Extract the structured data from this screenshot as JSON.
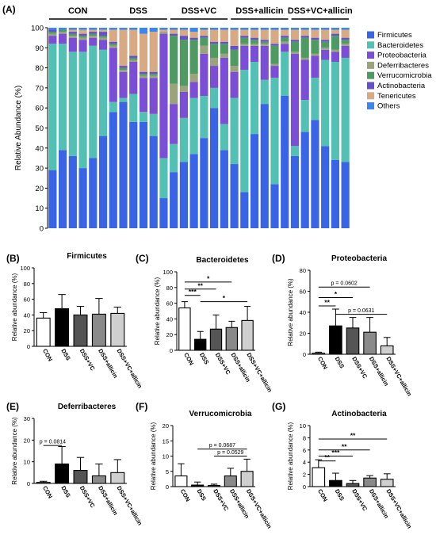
{
  "figure": {
    "panel_labels": [
      "(A)",
      "(B)",
      "(C)",
      "(D)",
      "(E)",
      "(F)",
      "(G)"
    ]
  },
  "colors": {
    "Firmicutes": "#3a64e6",
    "Bacteroidetes": "#52c1b3",
    "Proteobacteria": "#7a4fd6",
    "Deferribacteres": "#9aa37a",
    "Verrucomicrobia": "#4f9a63",
    "Actinobacteria": "#6650c9",
    "Tenericutes": "#d8aa83",
    "Others": "#3b86f0",
    "bar_fills": [
      "#ffffff",
      "#000000",
      "#555555",
      "#8a8a8a",
      "#cfcfcf"
    ]
  },
  "chart_data": [
    {
      "panel": "(A)",
      "type": "bar",
      "stacked": true,
      "ylabel": "Relative Abundance (%)",
      "ylim": [
        0,
        100
      ],
      "yticks": [
        0,
        10,
        20,
        30,
        40,
        50,
        60,
        70,
        80,
        90,
        100
      ],
      "groups": [
        "CON",
        "DSS",
        "DSS+VC",
        "DSS+allicin",
        "DSS+VC+allicin"
      ],
      "samples_per_group": 6,
      "legend": [
        "Firmicutes",
        "Bacteroidetes",
        "Proteobacteria",
        "Deferribacteres",
        "Verrucomicrobia",
        "Actinobacteria",
        "Tenericutes",
        "Others"
      ],
      "legend_position": "right",
      "series": [
        {
          "name": "Firmicutes",
          "values": [
            29,
            39,
            36,
            30,
            35,
            46,
            58,
            63,
            53,
            53,
            46,
            15,
            28,
            33,
            37,
            45,
            60,
            39,
            32,
            18,
            47,
            62,
            22,
            66,
            36,
            48,
            54,
            41,
            34,
            33
          ]
        },
        {
          "name": "Bacteroidetes",
          "values": [
            63,
            53,
            52,
            58,
            56,
            43,
            5,
            2,
            14,
            5,
            11,
            20,
            14,
            22,
            28,
            21,
            10,
            13,
            33,
            61,
            36,
            12,
            53,
            22,
            5,
            16,
            21,
            43,
            49,
            52
          ]
        },
        {
          "name": "Proteobacteria",
          "values": [
            4,
            5,
            7,
            6,
            4,
            5,
            27,
            13,
            16,
            17,
            18,
            62,
            20,
            13,
            8,
            21,
            11,
            33,
            13,
            12,
            8,
            17,
            6,
            4,
            46,
            20,
            11,
            5,
            5,
            6
          ]
        },
        {
          "name": "Deferribacteres",
          "values": [
            1,
            1,
            1,
            1,
            1,
            1,
            1,
            1,
            1,
            1,
            1,
            1,
            10,
            3,
            4,
            4,
            4,
            2,
            3,
            1,
            1,
            1,
            1,
            1,
            1,
            1,
            1,
            1,
            1,
            1
          ]
        },
        {
          "name": "Verrucomicrobia",
          "values": [
            1,
            1,
            1,
            1,
            1,
            1,
            1,
            1,
            1,
            1,
            1,
            0,
            24,
            23,
            17,
            4,
            7,
            5,
            8,
            3,
            2,
            1,
            9,
            2,
            5,
            10,
            7,
            3,
            7,
            2
          ]
        },
        {
          "name": "Actinobacteria",
          "values": [
            1,
            0,
            1,
            1,
            1,
            2,
            1,
            1,
            1,
            1,
            1,
            0,
            1,
            2,
            1,
            1,
            1,
            1,
            2,
            1,
            1,
            1,
            1,
            1,
            1,
            1,
            1,
            1,
            1,
            1
          ]
        },
        {
          "name": "Tenericutes",
          "values": [
            0,
            0,
            1,
            2,
            1,
            1,
            6,
            18,
            13,
            19,
            20,
            1,
            2,
            3,
            3,
            3,
            6,
            6,
            8,
            3,
            4,
            5,
            7,
            3,
            5,
            3,
            4,
            5,
            2,
            4
          ]
        },
        {
          "name": "Others",
          "values": [
            1,
            1,
            1,
            1,
            1,
            1,
            1,
            1,
            1,
            3,
            2,
            1,
            1,
            1,
            2,
            1,
            1,
            1,
            1,
            1,
            1,
            1,
            1,
            1,
            1,
            1,
            1,
            1,
            1,
            1
          ]
        }
      ]
    },
    {
      "panel": "(B)",
      "type": "bar",
      "title": "Firmicutes",
      "ylabel": "Relative abundance (%)",
      "categories": [
        "CON",
        "DSS",
        "DSS+VC",
        "DSS+allicin",
        "DSS+VC+allicin"
      ],
      "values": [
        36,
        48,
        40,
        41,
        42
      ],
      "errors": [
        7,
        18,
        11,
        20,
        8
      ],
      "ylim": [
        0,
        100
      ],
      "yticks": [
        0,
        20,
        40,
        60,
        80,
        100
      ],
      "annotations": []
    },
    {
      "panel": "(C)",
      "type": "bar",
      "title": "Bacteroidetes",
      "ylabel": "Relative abundance (%)",
      "categories": [
        "CON",
        "DSS",
        "DSS+VC",
        "DSS+allicin",
        "DSS+VC+allicin"
      ],
      "values": [
        54,
        14,
        27,
        29,
        38
      ],
      "errors": [
        8,
        10,
        18,
        8,
        18
      ],
      "ylim": [
        0,
        100
      ],
      "yticks": [
        0,
        20,
        40,
        60,
        80,
        100
      ],
      "annotations": [
        {
          "from": 0,
          "to": 3,
          "y": 87,
          "label": "*"
        },
        {
          "from": 0,
          "to": 2,
          "y": 78,
          "label": "**"
        },
        {
          "from": 0,
          "to": 1,
          "y": 70,
          "label": "***"
        },
        {
          "from": 1,
          "to": 4,
          "y": 62,
          "label": "*"
        }
      ]
    },
    {
      "panel": "(D)",
      "type": "bar",
      "title": "Proteobacteria",
      "ylabel": "Relative abundance (%)",
      "categories": [
        "CON",
        "DSS",
        "DSS+VC",
        "DSS+allicin",
        "DSS+VC+allicin"
      ],
      "values": [
        1,
        27,
        25,
        21,
        8
      ],
      "errors": [
        1,
        16,
        10,
        14,
        8
      ],
      "ylim": [
        0,
        80
      ],
      "yticks": [
        0,
        20,
        40,
        60,
        80
      ],
      "annotations": [
        {
          "from": 0,
          "to": 3,
          "y": 64,
          "label": "p = 0.0602"
        },
        {
          "from": 0,
          "to": 2,
          "y": 54,
          "label": "*"
        },
        {
          "from": 0,
          "to": 1,
          "y": 46,
          "label": "**"
        },
        {
          "from": 1,
          "to": 4,
          "y": 38,
          "label": "p = 0.0631"
        }
      ]
    },
    {
      "panel": "(E)",
      "type": "bar",
      "title": "Deferribacteres",
      "ylabel": "Relative abundance (%)",
      "categories": [
        "CON",
        "DSS",
        "DSS+VC",
        "DSS+allicin",
        "DSS+VC+allicin"
      ],
      "values": [
        0.5,
        9,
        6,
        3.5,
        5
      ],
      "errors": [
        0.5,
        8,
        6,
        5.5,
        6
      ],
      "ylim": [
        0,
        30
      ],
      "yticks": [
        0,
        10,
        20,
        30
      ],
      "annotations": [
        {
          "from": 0,
          "to": 1,
          "y": 17.5,
          "label": "p = 0.0814"
        }
      ]
    },
    {
      "panel": "(F)",
      "type": "bar",
      "title": "Verrucomicrobia",
      "ylabel": "Relative abundance (%)",
      "categories": [
        "CON",
        "DSS",
        "DSS+VC",
        "DSS+allicin",
        "DSS+VC+allicin"
      ],
      "values": [
        3.5,
        0.5,
        0.4,
        3.5,
        5
      ],
      "errors": [
        4,
        1,
        0.4,
        2.5,
        4
      ],
      "ylim": [
        0,
        20
      ],
      "yticks": [
        0,
        5,
        10,
        15,
        20
      ],
      "annotations": [
        {
          "from": 1,
          "to": 4,
          "y": 12.3,
          "label": "p = 0.0687"
        },
        {
          "from": 2,
          "to": 4,
          "y": 10,
          "label": "p = 0.0529"
        }
      ]
    },
    {
      "panel": "(G)",
      "type": "bar",
      "title": "Actinobacteria",
      "ylabel": "Relative abundance (%)",
      "categories": [
        "CON",
        "DSS",
        "DSS+VC",
        "DSS+allicin",
        "DSS+VC+allicin"
      ],
      "values": [
        3.1,
        1.0,
        0.5,
        1.4,
        1.2
      ],
      "errors": [
        1.3,
        1.2,
        0.5,
        0.4,
        0.9
      ],
      "ylim": [
        0,
        10
      ],
      "yticks": [
        0,
        2,
        4,
        6,
        8,
        10
      ],
      "annotations": [
        {
          "from": 0,
          "to": 4,
          "y": 7.8,
          "label": "**"
        },
        {
          "from": 0,
          "to": 3,
          "y": 6.0,
          "label": "**"
        },
        {
          "from": 0,
          "to": 2,
          "y": 5.0,
          "label": "***"
        },
        {
          "from": 0,
          "to": 1,
          "y": 4.2,
          "label": "**"
        }
      ]
    }
  ]
}
